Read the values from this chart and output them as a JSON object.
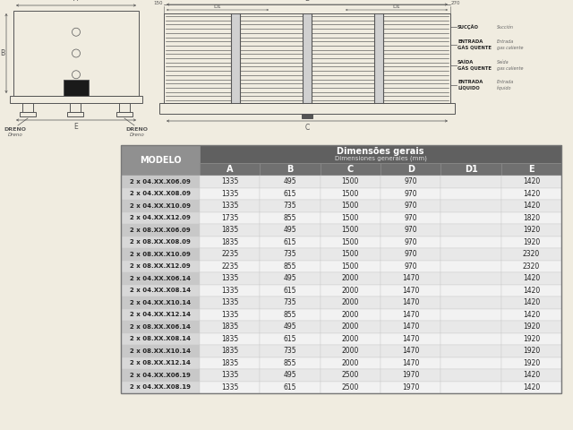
{
  "bg_color": "#f0ece0",
  "table_header1": "Dimensões gerais",
  "table_header2": "Dimensiones generales (mm)",
  "model_col_header": "MODELO",
  "col_headers": [
    "A",
    "B",
    "C",
    "D",
    "D1",
    "E"
  ],
  "rows": [
    [
      "2 x 04.XX.X06.09",
      "1335",
      "495",
      "1500",
      "970",
      "",
      "1420"
    ],
    [
      "2 x 04.XX.X08.09",
      "1335",
      "615",
      "1500",
      "970",
      "",
      "1420"
    ],
    [
      "2 x 04.XX.X10.09",
      "1335",
      "735",
      "1500",
      "970",
      "",
      "1420"
    ],
    [
      "2 x 04.XX.X12.09",
      "1735",
      "855",
      "1500",
      "970",
      "",
      "1820"
    ],
    [
      "2 x 08.XX.X06.09",
      "1835",
      "495",
      "1500",
      "970",
      "",
      "1920"
    ],
    [
      "2 x 08.XX.X08.09",
      "1835",
      "615",
      "1500",
      "970",
      "",
      "1920"
    ],
    [
      "2 x 08.XX.X10.09",
      "2235",
      "735",
      "1500",
      "970",
      "",
      "2320"
    ],
    [
      "2 x 08.XX.X12.09",
      "2235",
      "855",
      "1500",
      "970",
      "",
      "2320"
    ],
    [
      "2 x 04.XX.X06.14",
      "1335",
      "495",
      "2000",
      "1470",
      "",
      "1420"
    ],
    [
      "2 x 04.XX.X08.14",
      "1335",
      "615",
      "2000",
      "1470",
      "",
      "1420"
    ],
    [
      "2 x 04.XX.X10.14",
      "1335",
      "735",
      "2000",
      "1470",
      "",
      "1420"
    ],
    [
      "2 x 04.XX.X12.14",
      "1335",
      "855",
      "2000",
      "1470",
      "",
      "1420"
    ],
    [
      "2 x 08.XX.X06.14",
      "1835",
      "495",
      "2000",
      "1470",
      "",
      "1920"
    ],
    [
      "2 x 08.XX.X08.14",
      "1835",
      "615",
      "2000",
      "1470",
      "",
      "1920"
    ],
    [
      "2 x 08.XX.X10.14",
      "1835",
      "735",
      "2000",
      "1470",
      "",
      "1920"
    ],
    [
      "2 x 08.XX.X12.14",
      "1835",
      "855",
      "2000",
      "1470",
      "",
      "1920"
    ],
    [
      "2 x 04.XX.X06.19",
      "1335",
      "495",
      "2500",
      "1970",
      "",
      "1420"
    ],
    [
      "2 x 04.XX.X08.19",
      "1335",
      "615",
      "2500",
      "1970",
      "",
      "1420"
    ]
  ],
  "header_bg": "#606060",
  "col_header_bg": "#707070",
  "model_col_bg": "#909090",
  "row_odd_bg": "#e8e8e8",
  "row_even_bg": "#f2f2f2",
  "model_row_odd_bg": "#c8c8c8",
  "model_row_even_bg": "#d8d8d8",
  "border_color": "#aaaaaa",
  "lc": "#555555"
}
